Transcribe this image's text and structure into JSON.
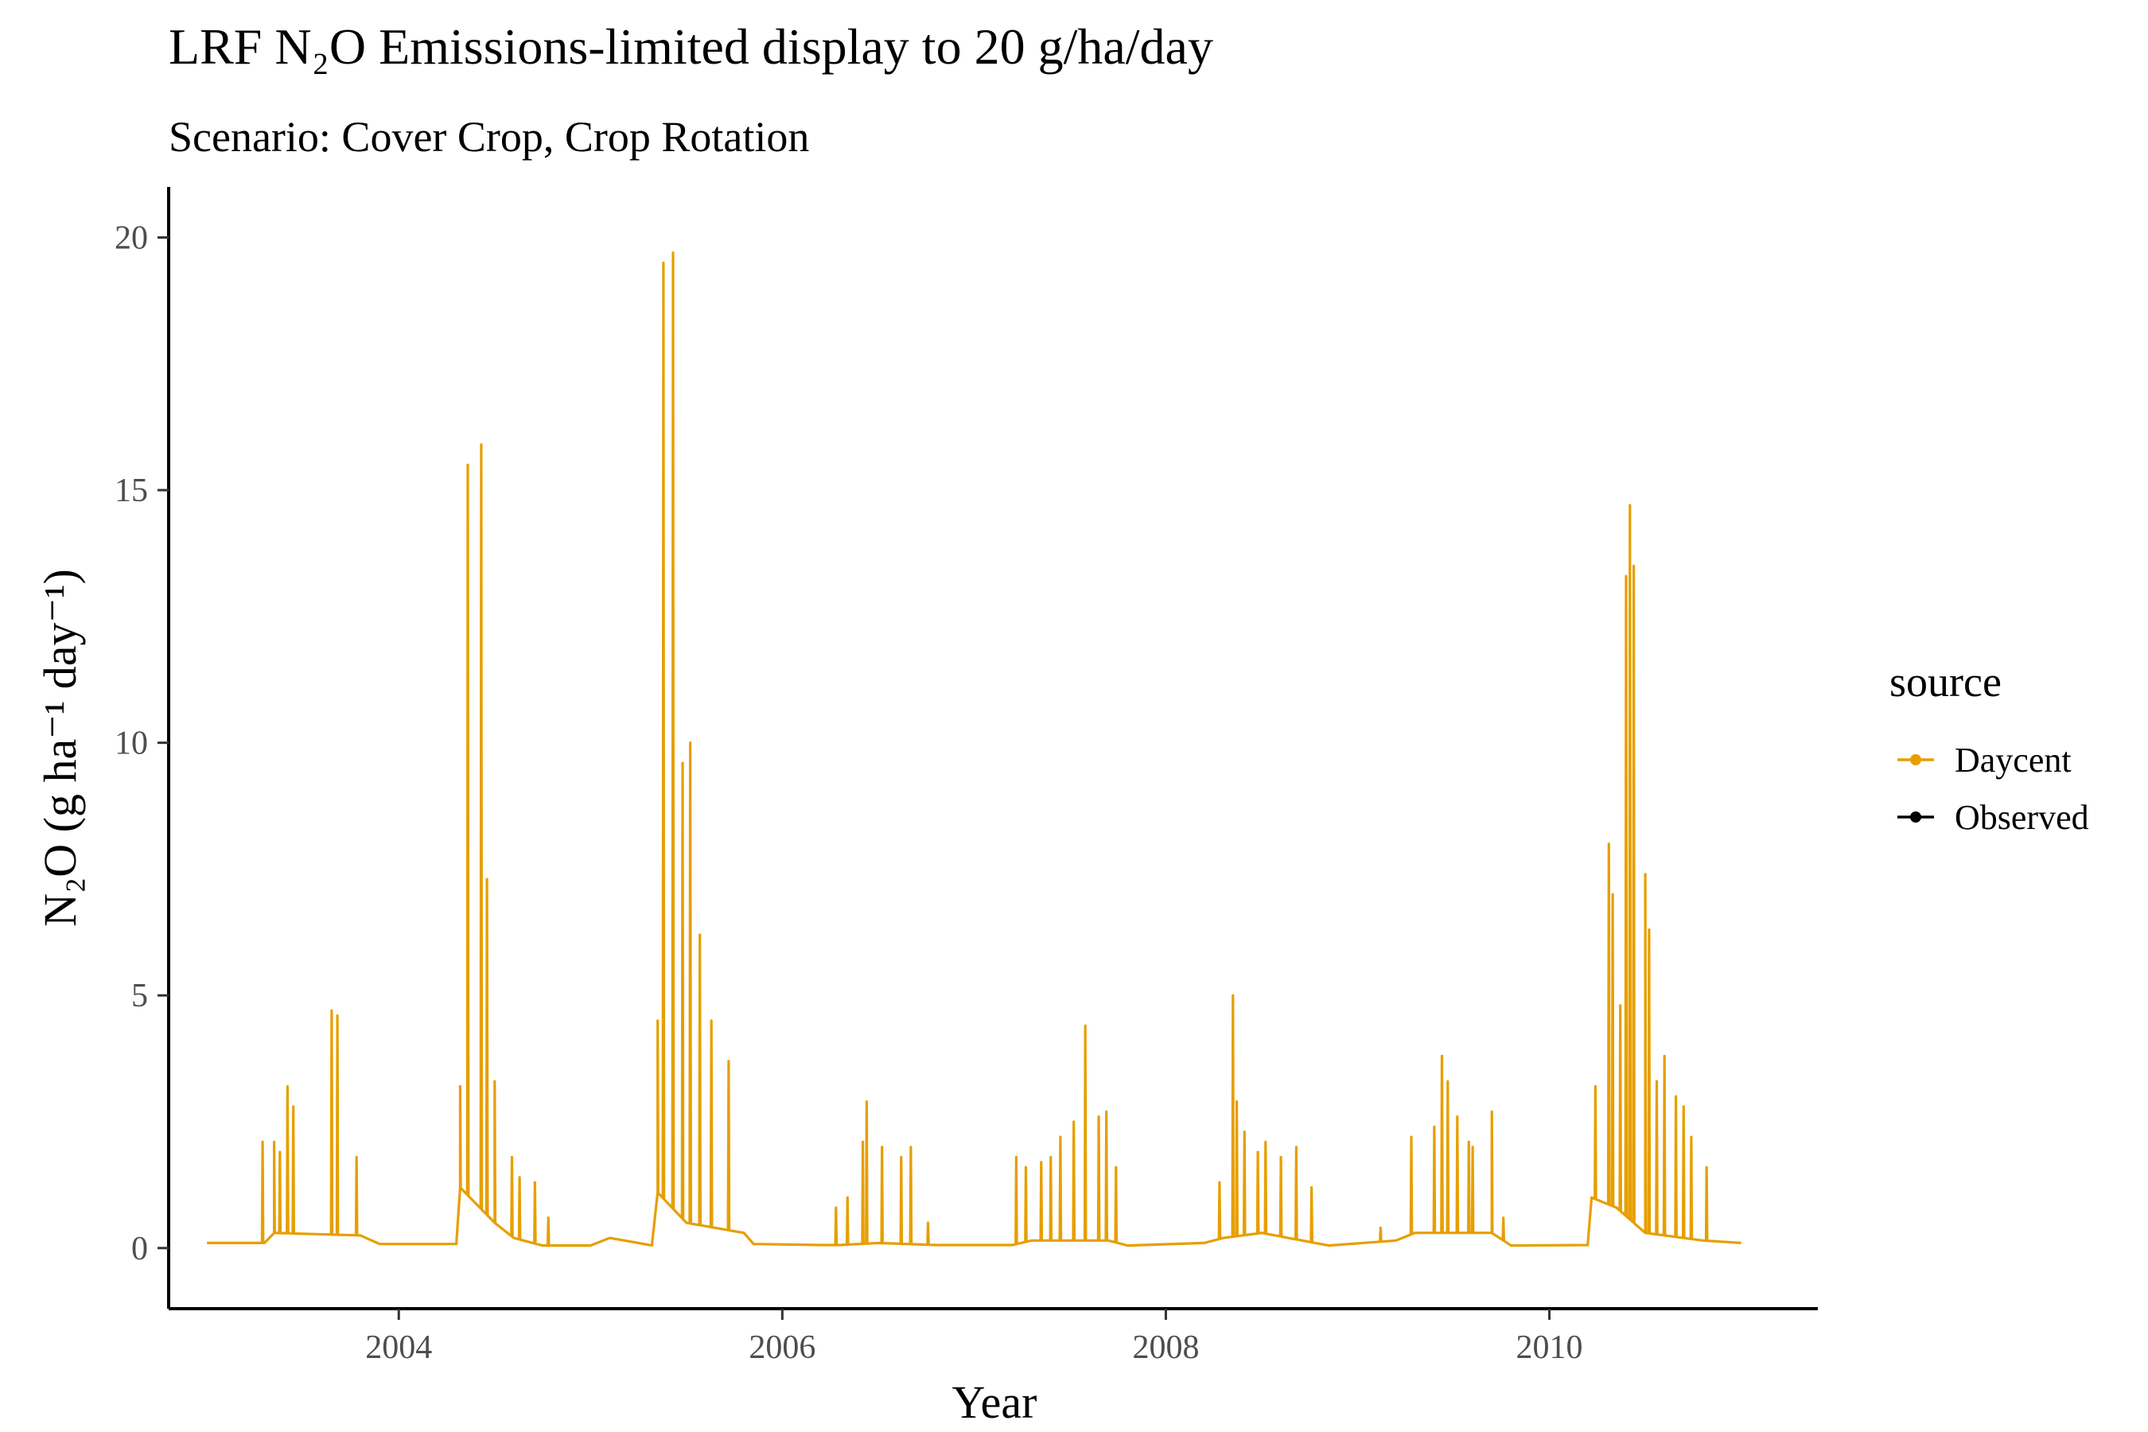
{
  "chart_data": {
    "type": "line",
    "title": "LRF N₂O Emissions-limited display to 20 g/ha/day",
    "subtitle": "Scenario: Cover Crop, Crop Rotation",
    "xlabel": "Year",
    "ylabel": "N₂O (g ha⁻¹ day⁻¹)",
    "xlim": [
      2002.8,
      2011.4
    ],
    "ylim": [
      -1.2,
      21.0
    ],
    "x_ticks": [
      2004,
      2006,
      2008,
      2010
    ],
    "y_ticks": [
      0,
      5,
      10,
      15,
      20
    ],
    "grid": false,
    "legend": {
      "title": "source",
      "position": "right",
      "entries": [
        {
          "name": "Daycent",
          "color": "#E69F00"
        },
        {
          "name": "Observed",
          "color": "#000000"
        }
      ]
    },
    "baseline": [
      [
        2003.0,
        0.1
      ],
      [
        2003.3,
        0.1
      ],
      [
        2003.35,
        0.3
      ],
      [
        2003.8,
        0.25
      ],
      [
        2003.9,
        0.08
      ],
      [
        2004.3,
        0.08
      ],
      [
        2004.32,
        1.2
      ],
      [
        2004.5,
        0.5
      ],
      [
        2004.6,
        0.2
      ],
      [
        2004.75,
        0.05
      ],
      [
        2005.0,
        0.05
      ],
      [
        2005.1,
        0.2
      ],
      [
        2005.25,
        0.1
      ],
      [
        2005.32,
        0.05
      ],
      [
        2005.35,
        1.1
      ],
      [
        2005.5,
        0.5
      ],
      [
        2005.8,
        0.3
      ],
      [
        2005.85,
        0.08
      ],
      [
        2006.2,
        0.06
      ],
      [
        2006.3,
        0.06
      ],
      [
        2006.5,
        0.1
      ],
      [
        2006.8,
        0.06
      ],
      [
        2007.2,
        0.06
      ],
      [
        2007.3,
        0.15
      ],
      [
        2007.7,
        0.15
      ],
      [
        2007.8,
        0.05
      ],
      [
        2008.2,
        0.1
      ],
      [
        2008.3,
        0.2
      ],
      [
        2008.5,
        0.3
      ],
      [
        2008.85,
        0.05
      ],
      [
        2009.2,
        0.15
      ],
      [
        2009.3,
        0.3
      ],
      [
        2009.7,
        0.3
      ],
      [
        2009.8,
        0.05
      ],
      [
        2010.2,
        0.06
      ],
      [
        2010.22,
        1.0
      ],
      [
        2010.35,
        0.8
      ],
      [
        2010.5,
        0.3
      ],
      [
        2010.8,
        0.15
      ],
      [
        2011.0,
        0.1
      ]
    ],
    "spikes": [
      [
        2003.29,
        2.1
      ],
      [
        2003.35,
        2.1
      ],
      [
        2003.38,
        1.9
      ],
      [
        2003.42,
        3.2
      ],
      [
        2003.45,
        2.8
      ],
      [
        2003.65,
        4.7
      ],
      [
        2003.68,
        4.6
      ],
      [
        2003.78,
        1.8
      ],
      [
        2004.32,
        3.2
      ],
      [
        2004.36,
        15.5
      ],
      [
        2004.43,
        15.9
      ],
      [
        2004.46,
        7.3
      ],
      [
        2004.5,
        3.3
      ],
      [
        2004.59,
        1.8
      ],
      [
        2004.63,
        1.4
      ],
      [
        2004.71,
        1.3
      ],
      [
        2004.78,
        0.6
      ],
      [
        2005.35,
        4.5
      ],
      [
        2005.38,
        19.5
      ],
      [
        2005.43,
        19.7
      ],
      [
        2005.48,
        9.6
      ],
      [
        2005.52,
        10.0
      ],
      [
        2005.57,
        6.2
      ],
      [
        2005.63,
        4.5
      ],
      [
        2005.72,
        3.7
      ],
      [
        2006.28,
        0.8
      ],
      [
        2006.34,
        1.0
      ],
      [
        2006.42,
        2.1
      ],
      [
        2006.44,
        2.9
      ],
      [
        2006.52,
        2.0
      ],
      [
        2006.62,
        1.8
      ],
      [
        2006.67,
        2.0
      ],
      [
        2006.76,
        0.5
      ],
      [
        2007.22,
        1.8
      ],
      [
        2007.27,
        1.6
      ],
      [
        2007.35,
        1.7
      ],
      [
        2007.4,
        1.8
      ],
      [
        2007.45,
        2.2
      ],
      [
        2007.52,
        2.5
      ],
      [
        2007.58,
        4.4
      ],
      [
        2007.65,
        2.6
      ],
      [
        2007.69,
        2.7
      ],
      [
        2007.74,
        1.6
      ],
      [
        2008.28,
        1.3
      ],
      [
        2008.35,
        5.0
      ],
      [
        2008.37,
        2.9
      ],
      [
        2008.41,
        2.3
      ],
      [
        2008.48,
        1.9
      ],
      [
        2008.52,
        2.1
      ],
      [
        2008.6,
        1.8
      ],
      [
        2008.68,
        2.0
      ],
      [
        2008.76,
        1.2
      ],
      [
        2009.12,
        0.4
      ],
      [
        2009.28,
        2.2
      ],
      [
        2009.4,
        2.4
      ],
      [
        2009.44,
        3.8
      ],
      [
        2009.47,
        3.3
      ],
      [
        2009.52,
        2.6
      ],
      [
        2009.58,
        2.1
      ],
      [
        2009.6,
        2.0
      ],
      [
        2009.7,
        2.7
      ],
      [
        2009.76,
        0.6
      ],
      [
        2010.24,
        3.2
      ],
      [
        2010.31,
        8.0
      ],
      [
        2010.33,
        7.0
      ],
      [
        2010.37,
        4.8
      ],
      [
        2010.4,
        13.3
      ],
      [
        2010.42,
        14.7
      ],
      [
        2010.44,
        13.5
      ],
      [
        2010.5,
        7.4
      ],
      [
        2010.52,
        6.3
      ],
      [
        2010.56,
        3.3
      ],
      [
        2010.6,
        3.8
      ],
      [
        2010.66,
        3.0
      ],
      [
        2010.7,
        2.8
      ],
      [
        2010.74,
        2.2
      ],
      [
        2010.82,
        1.6
      ]
    ]
  }
}
